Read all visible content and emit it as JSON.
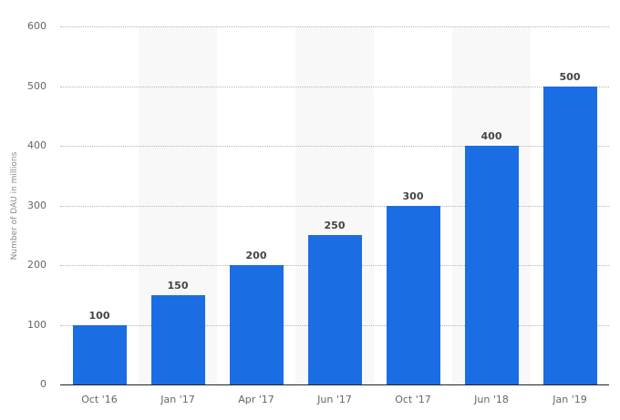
{
  "chart_data": {
    "type": "bar",
    "title": "",
    "xlabel": "",
    "ylabel": "Number of DAU in millions",
    "categories": [
      "Oct '16",
      "Jan '17",
      "Apr '17",
      "Jun '17",
      "Oct '17",
      "Jun '18",
      "Jan '19"
    ],
    "values": [
      100,
      150,
      200,
      250,
      300,
      400,
      500
    ],
    "data_labels": [
      "100",
      "150",
      "200",
      "250",
      "300",
      "400",
      "500"
    ],
    "ylim": [
      0,
      600
    ],
    "yticks": [
      0,
      100,
      200,
      300,
      400,
      500,
      600
    ],
    "ytick_labels": [
      "0",
      "100",
      "200",
      "300",
      "400",
      "500",
      "600"
    ],
    "grid": true,
    "legend": null,
    "colors": {
      "bar": "#1a6de3",
      "band": "#f8f8f8",
      "grid": "#b5b5b5"
    }
  }
}
